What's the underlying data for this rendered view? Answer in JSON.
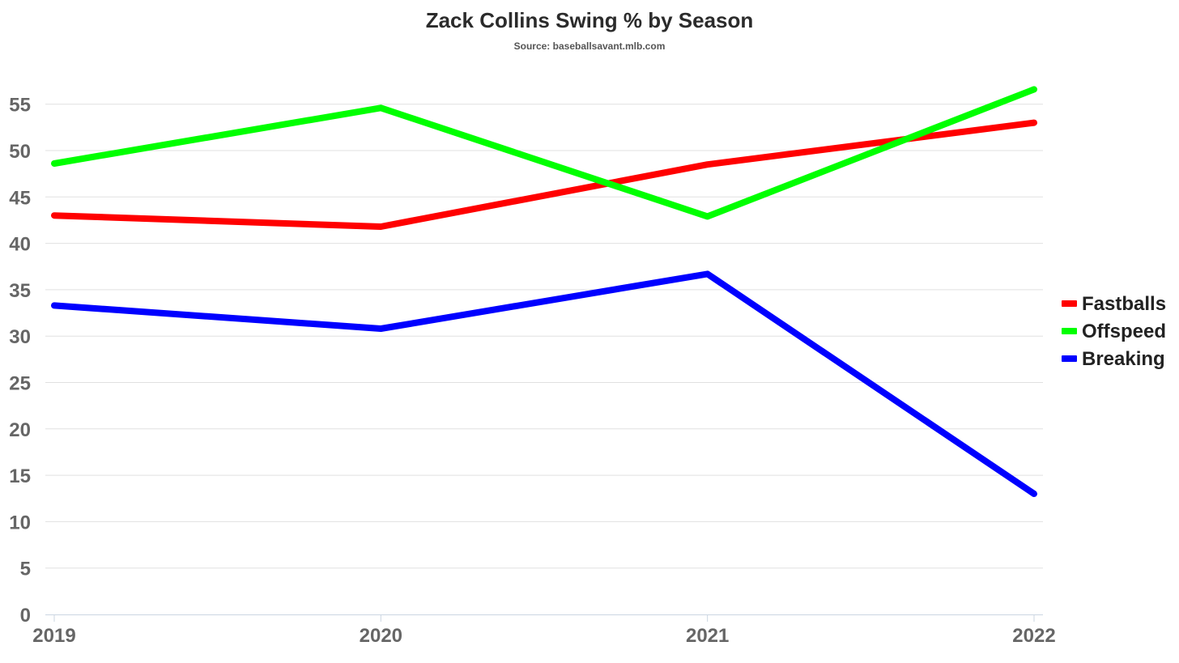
{
  "chart_data": {
    "type": "line",
    "title": "Zack Collins Swing % by Season",
    "subtitle": "Source: baseballsavant.mlb.com",
    "xlabel": "",
    "ylabel": "",
    "categories": [
      "2019",
      "2020",
      "2021",
      "2022"
    ],
    "ylim": [
      0,
      55
    ],
    "yticks": [
      0,
      5,
      10,
      15,
      20,
      25,
      30,
      35,
      40,
      45,
      50,
      55
    ],
    "grid": true,
    "legend_position": "right",
    "series": [
      {
        "name": "Fastballs",
        "color": "#ff0000",
        "values": [
          43.0,
          41.8,
          48.5,
          53.0
        ]
      },
      {
        "name": "Offspeed",
        "color": "#00ff00",
        "values": [
          48.6,
          54.6,
          42.9,
          56.6
        ]
      },
      {
        "name": "Breaking",
        "color": "#0000ff",
        "values": [
          33.3,
          30.8,
          36.7,
          13.0
        ]
      }
    ]
  }
}
